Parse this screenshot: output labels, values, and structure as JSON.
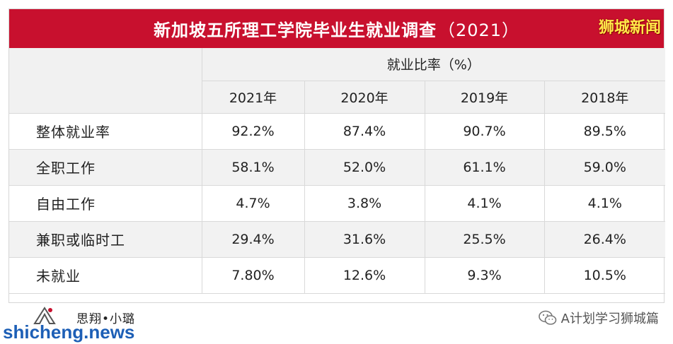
{
  "title": {
    "main": "新加坡五所理工学院毕业生就业调查",
    "year": "（2021）",
    "corner_label": "狮城新闻"
  },
  "table": {
    "group_header": "就业比率（%）",
    "columns": [
      "2021年",
      "2020年",
      "2019年",
      "2018年"
    ],
    "rows": [
      {
        "label": "整体就业率",
        "values": [
          "92.2%",
          "87.4%",
          "90.7%",
          "89.5%"
        ]
      },
      {
        "label": "全职工作",
        "values": [
          "58.1%",
          "52.0%",
          "61.1%",
          "59.0%"
        ]
      },
      {
        "label": "自由工作",
        "values": [
          "4.7%",
          "3.8%",
          "4.1%",
          "4.1%"
        ]
      },
      {
        "label": "兼职或临时工",
        "values": [
          "29.4%",
          "31.6%",
          "25.5%",
          "26.4%"
        ]
      },
      {
        "label": "未就业",
        "values": [
          "7.80%",
          "12.6%",
          "9.3%",
          "10.5%"
        ]
      }
    ]
  },
  "footer": {
    "signature": "思翔•小璐",
    "site_watermark": "shicheng.news",
    "account": "A计划学习狮城篇",
    "account_icon": "wechat-icon"
  },
  "colors": {
    "title_bg": "#c8102e",
    "corner_label": "#ffe84a",
    "header_bg": "#f1f1f1",
    "watermark": "#1d5fb6"
  }
}
